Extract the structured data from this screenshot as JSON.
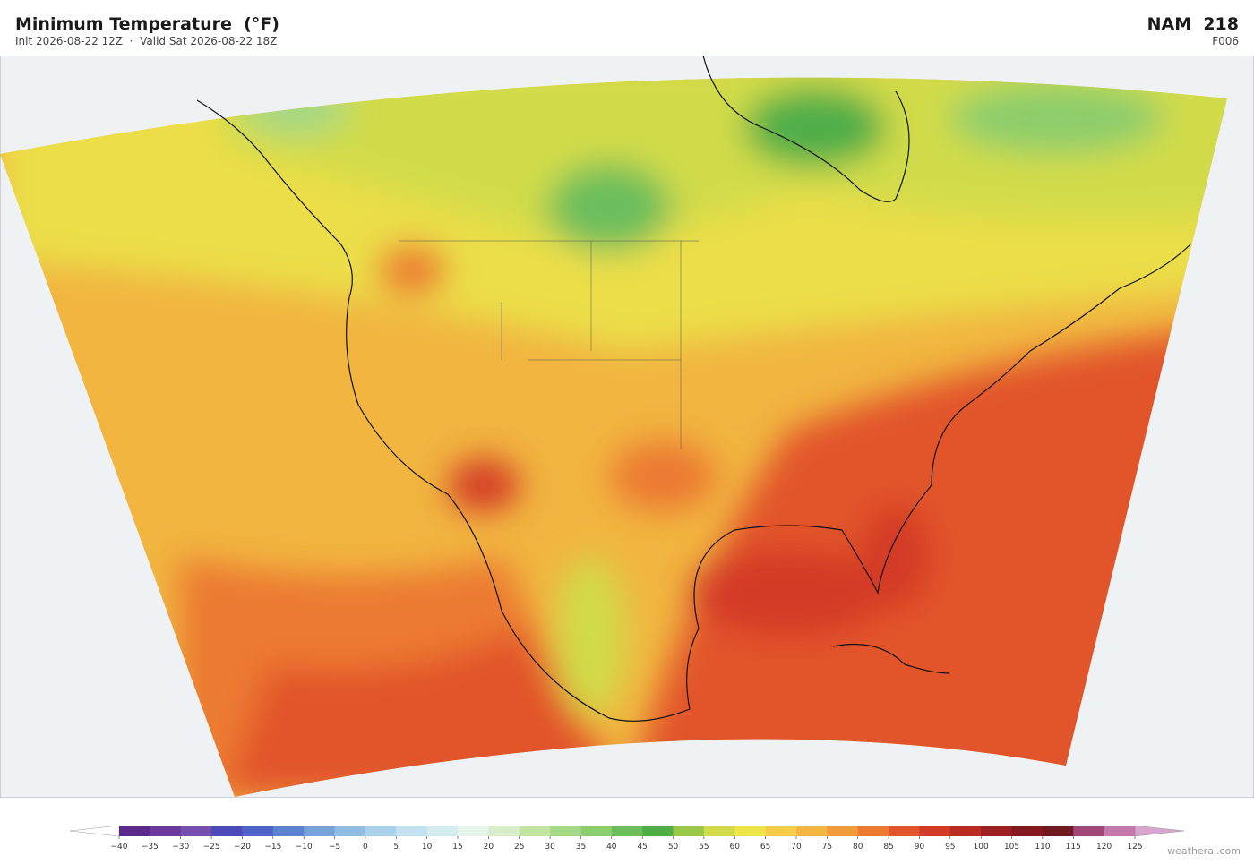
{
  "header": {
    "title": "Minimum Temperature  (°F)",
    "subtitle": "Init 2026-08-22 12Z  ·  Valid Sat 2026-08-22 18Z",
    "model": "NAM  218",
    "forecast_hour": "F006"
  },
  "colorbar": {
    "ticks": [
      {
        "value": -40,
        "label": "−40"
      },
      {
        "value": -35,
        "label": "−35"
      },
      {
        "value": -30,
        "label": "−30"
      },
      {
        "value": -25,
        "label": "−25"
      },
      {
        "value": -20,
        "label": "−20"
      },
      {
        "value": -15,
        "label": "−15"
      },
      {
        "value": -10,
        "label": "−10"
      },
      {
        "value": -5,
        "label": "−5"
      },
      0,
      5,
      10,
      15,
      20,
      25,
      30,
      35,
      40,
      45,
      50,
      55,
      60,
      65,
      70,
      75,
      80,
      85,
      90,
      95,
      100,
      105,
      110,
      115,
      120,
      125
    ],
    "colors": [
      "#5b2a8c",
      "#6b3a9e",
      "#7550b0",
      "#4b4ab8",
      "#4f63c9",
      "#5e82d2",
      "#79a3d8",
      "#92bde2",
      "#a9d1ea",
      "#c3e2ef",
      "#d6edf0",
      "#e6f4ec",
      "#d8eecb",
      "#c2e4a2",
      "#a5d884",
      "#8ccd6c",
      "#6cbe5c",
      "#4eae4a",
      "#9bc84a",
      "#d1db4a",
      "#ede446",
      "#f4ce48",
      "#f4b640",
      "#f29b3a",
      "#ec7a31",
      "#e2542a",
      "#d43b25",
      "#ba2b22",
      "#9c1f21",
      "#841a20",
      "#72191f",
      "#a04778",
      "#c27aac"
    ],
    "under_color": "#ffffff",
    "over_color": "#d6a6cf"
  },
  "watermark": "weatherai.com"
}
